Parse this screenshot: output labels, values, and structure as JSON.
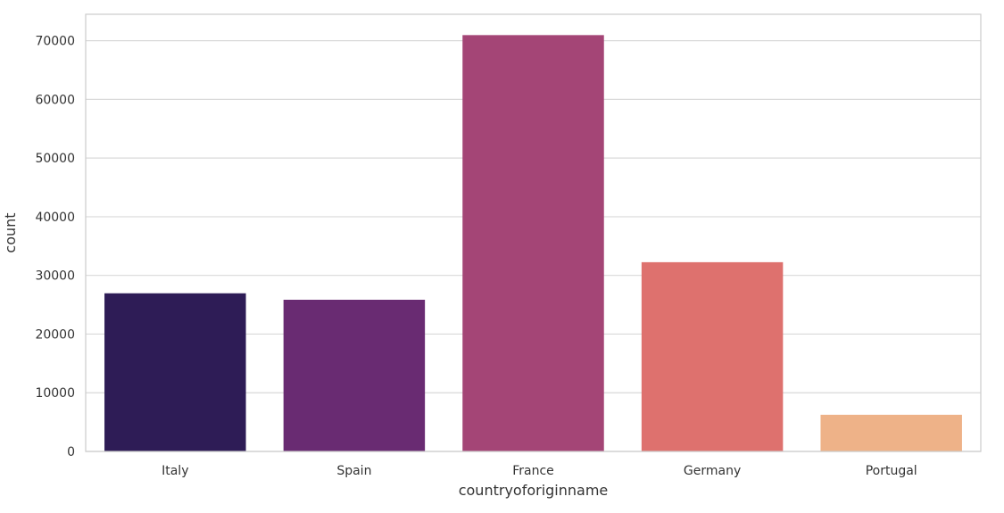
{
  "chart_data": {
    "type": "bar",
    "title": "",
    "xlabel": "countryoforiginname",
    "ylabel": "count",
    "categories": [
      "Italy",
      "Spain",
      "France",
      "Germany",
      "Portugal"
    ],
    "values": [
      26950,
      25850,
      70950,
      32250,
      6250
    ],
    "colors": [
      "#2E1C56",
      "#692B72",
      "#A44576",
      "#DE716E",
      "#EEB288"
    ],
    "ylim": [
      0,
      74500
    ],
    "yticks": [
      0,
      10000,
      20000,
      30000,
      40000,
      50000,
      60000,
      70000
    ],
    "ytick_labels": [
      "0",
      "10000",
      "20000",
      "30000",
      "40000",
      "50000",
      "60000",
      "70000"
    ],
    "grid": true,
    "legend": "none"
  }
}
